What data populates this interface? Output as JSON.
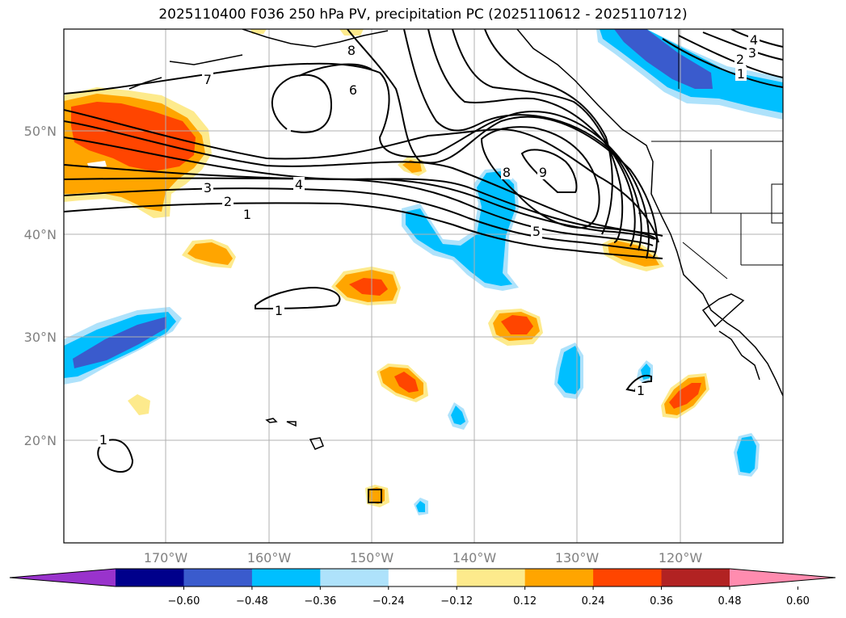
{
  "title": "2025110400 F036 250 hPa PV, precipitation PC (2025110612 - 2025110712)",
  "map": {
    "lat_labels": [
      "50°N",
      "40°N",
      "30°N",
      "20°N"
    ],
    "lon_labels": [
      "170°W",
      "160°W",
      "150°W",
      "140°W",
      "130°W",
      "120°W"
    ],
    "contour_labels": [
      "7",
      "8",
      "6",
      "9",
      "8",
      "5",
      "4",
      "3",
      "2",
      "1",
      "4",
      "3",
      "2",
      "1",
      "1",
      "1",
      "1"
    ]
  },
  "colorbar": {
    "ticks": [
      "−0.60",
      "−0.48",
      "−0.36",
      "−0.24",
      "−0.12",
      "0.12",
      "0.24",
      "0.36",
      "0.48",
      "0.60"
    ],
    "colors": [
      "#9933cc",
      "#00008b",
      "#3a5bcd",
      "#00bfff",
      "#aee2fb",
      "#ffffff",
      "#fdea8c",
      "#ffa500",
      "#ff4500",
      "#b22222",
      "#ff8caf"
    ]
  }
}
